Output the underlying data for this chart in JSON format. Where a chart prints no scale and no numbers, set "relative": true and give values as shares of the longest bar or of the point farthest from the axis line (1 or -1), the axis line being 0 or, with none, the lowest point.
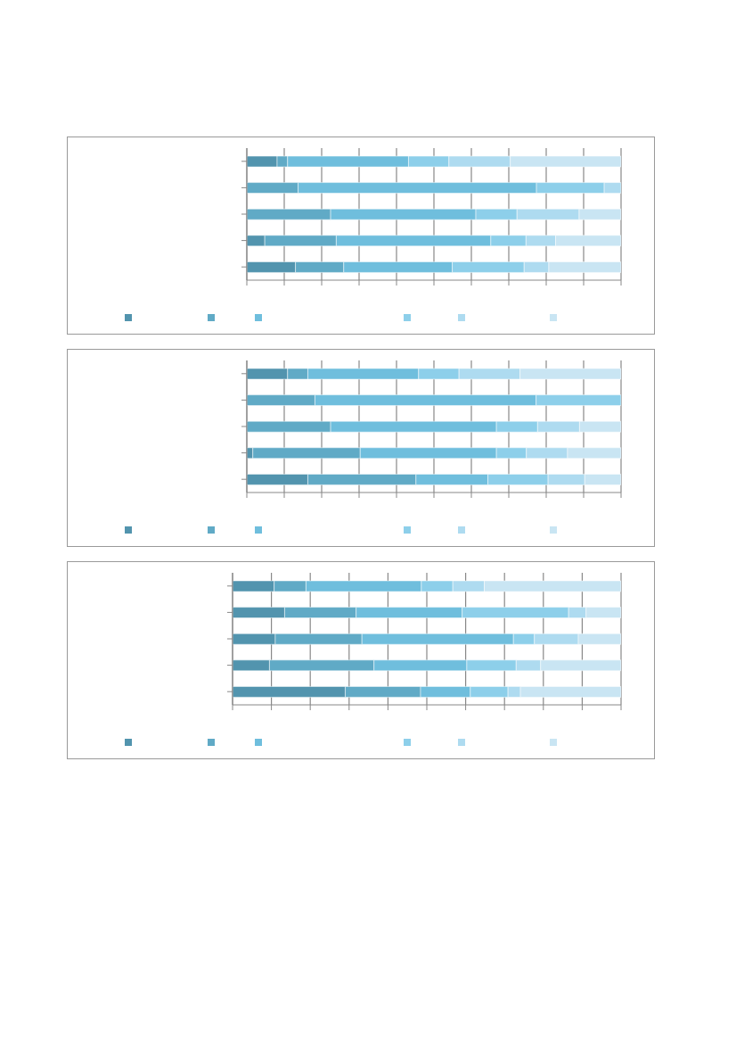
{
  "chart_data": [
    {
      "type": "bar",
      "orientation": "horizontal",
      "stacked": true,
      "relative": true,
      "grid": "x",
      "categories": [
        null,
        null,
        null,
        null,
        null
      ],
      "series": [
        {
          "color": "#5294ae",
          "values": [
            0.081,
            0,
            0,
            0.048,
            0.13
          ]
        },
        {
          "color": "#60aac6",
          "values": [
            0.028,
            0.137,
            0.224,
            0.191,
            0.129
          ]
        },
        {
          "color": "#6fbedd",
          "values": [
            0.323,
            0.637,
            0.388,
            0.413,
            0.29
          ]
        },
        {
          "color": "#8dcfea",
          "values": [
            0.108,
            0.181,
            0.11,
            0.094,
            0.192
          ]
        },
        {
          "color": "#aedbf0",
          "values": [
            0.164,
            0.045,
            0.166,
            0.079,
            0.066
          ]
        },
        {
          "color": "#c9e5f3",
          "values": [
            0.296,
            0,
            0.112,
            0.175,
            0.193
          ]
        }
      ]
    },
    {
      "type": "bar",
      "orientation": "horizontal",
      "stacked": true,
      "relative": true,
      "grid": "x",
      "categories": [
        null,
        null,
        null,
        null,
        null
      ],
      "series": [
        {
          "color": "#5294ae",
          "values": [
            0.109,
            0,
            0,
            0.016,
            0.163
          ]
        },
        {
          "color": "#60aac6",
          "values": [
            0.054,
            0.182,
            0.224,
            0.287,
            0.289
          ]
        },
        {
          "color": "#6fbedd",
          "values": [
            0.296,
            0.591,
            0.443,
            0.364,
            0.192
          ]
        },
        {
          "color": "#8dcfea",
          "values": [
            0.108,
            0.227,
            0.11,
            0.08,
            0.161
          ]
        },
        {
          "color": "#aedbf0",
          "values": [
            0.163,
            0,
            0.112,
            0.11,
            0.098
          ]
        },
        {
          "color": "#c9e5f3",
          "values": [
            0.27,
            0,
            0.111,
            0.143,
            0.097
          ]
        }
      ]
    },
    {
      "type": "bar",
      "orientation": "horizontal",
      "stacked": true,
      "relative": true,
      "grid": "x",
      "categories": [
        null,
        null,
        null,
        null,
        null
      ],
      "series": [
        {
          "color": "#5294ae",
          "values": [
            0.107,
            0.134,
            0.11,
            0.095,
            0.29
          ]
        },
        {
          "color": "#60aac6",
          "values": [
            0.082,
            0.184,
            0.223,
            0.269,
            0.194
          ]
        },
        {
          "color": "#6fbedd",
          "values": [
            0.297,
            0.273,
            0.39,
            0.239,
            0.128
          ]
        },
        {
          "color": "#8dcfea",
          "values": [
            0.081,
            0.274,
            0.054,
            0.127,
            0.097
          ]
        },
        {
          "color": "#aedbf0",
          "values": [
            0.081,
            0.045,
            0.113,
            0.063,
            0.032
          ]
        },
        {
          "color": "#c9e5f3",
          "values": [
            0.352,
            0.09,
            0.11,
            0.207,
            0.259
          ]
        }
      ]
    }
  ]
}
